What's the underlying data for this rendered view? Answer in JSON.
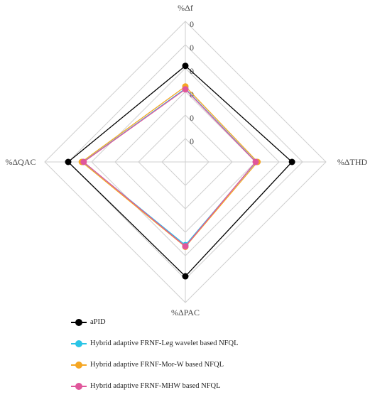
{
  "chart_data": {
    "type": "radar",
    "axes": [
      "%Δf",
      "%ΔTHD",
      "%ΔPAC",
      "%ΔQAC"
    ],
    "tick_labels": [
      "0",
      "0",
      "0",
      "0",
      "0",
      "0"
    ],
    "ring_count": 6,
    "rmax": 6,
    "series": [
      {
        "name": "aPID",
        "color": "#000000",
        "values": [
          4.1,
          4.55,
          4.88,
          5.0
        ]
      },
      {
        "name": "Hybrid adaptive FRNF-Leg wavelet based NFQL",
        "color": "#29c4e6",
        "values": [
          3.13,
          3.02,
          3.55,
          4.36
        ]
      },
      {
        "name": "Hybrid adaptive FRNF-Mor-W based NFQL",
        "color": "#f5a623",
        "values": [
          3.22,
          3.08,
          3.62,
          4.42
        ]
      },
      {
        "name": "Hybrid adaptive FRNF-MHW based NFQL",
        "color": "#e0569b",
        "values": [
          3.1,
          3.0,
          3.6,
          4.34
        ]
      }
    ],
    "grid": true,
    "legend_position": "bottom-left"
  }
}
